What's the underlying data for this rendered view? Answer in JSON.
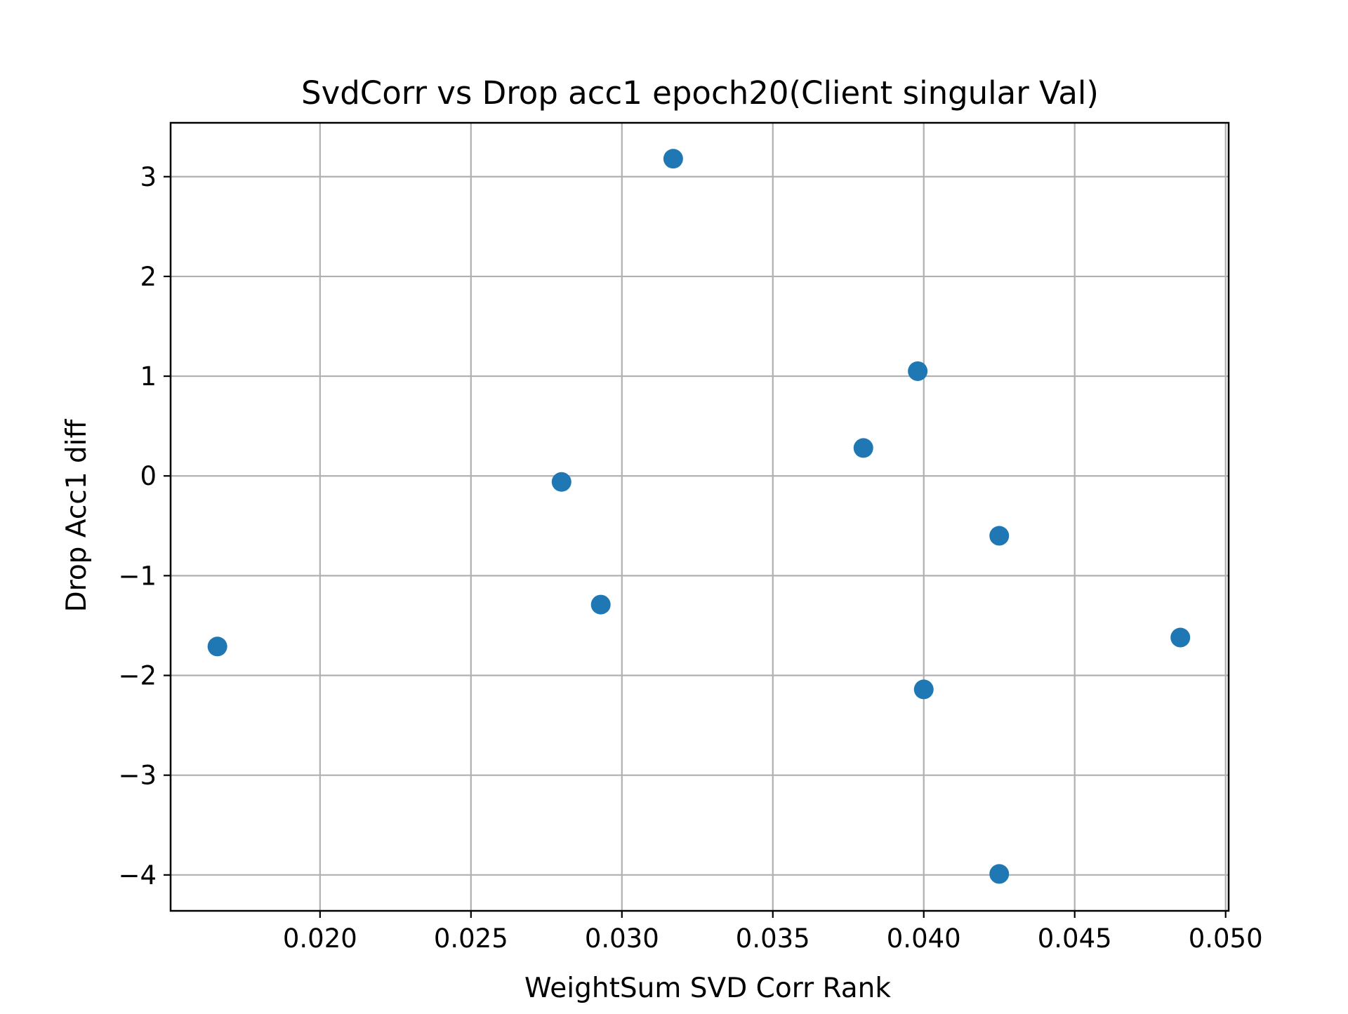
{
  "chart_data": {
    "type": "scatter",
    "title": "SvdCorr vs Drop acc1 epoch20(Client singular Val)",
    "xlabel": "WeightSum SVD Corr Rank",
    "ylabel": "Drop Acc1 diff",
    "xlim": [
      0.01505,
      0.0501
    ],
    "ylim": [
      -4.36,
      3.54
    ],
    "x_ticks": [
      0.02,
      0.025,
      0.03,
      0.035,
      0.04,
      0.045,
      0.05
    ],
    "x_tick_labels": [
      "0.020",
      "0.025",
      "0.030",
      "0.035",
      "0.040",
      "0.045",
      "0.050"
    ],
    "y_ticks": [
      -4,
      -3,
      -2,
      -1,
      0,
      1,
      2,
      3
    ],
    "y_tick_labels": [
      "−4",
      "−3",
      "−2",
      "−1",
      "0",
      "1",
      "2",
      "3"
    ],
    "grid": true,
    "marker_color": "#1f77b4",
    "points": [
      {
        "x": 0.0166,
        "y": -1.71
      },
      {
        "x": 0.028,
        "y": -0.06
      },
      {
        "x": 0.0293,
        "y": -1.29
      },
      {
        "x": 0.0317,
        "y": 3.18
      },
      {
        "x": 0.038,
        "y": 0.28
      },
      {
        "x": 0.0398,
        "y": 1.05
      },
      {
        "x": 0.04,
        "y": -2.14
      },
      {
        "x": 0.0425,
        "y": -0.6
      },
      {
        "x": 0.0425,
        "y": -3.99
      },
      {
        "x": 0.0485,
        "y": -1.62
      }
    ]
  }
}
